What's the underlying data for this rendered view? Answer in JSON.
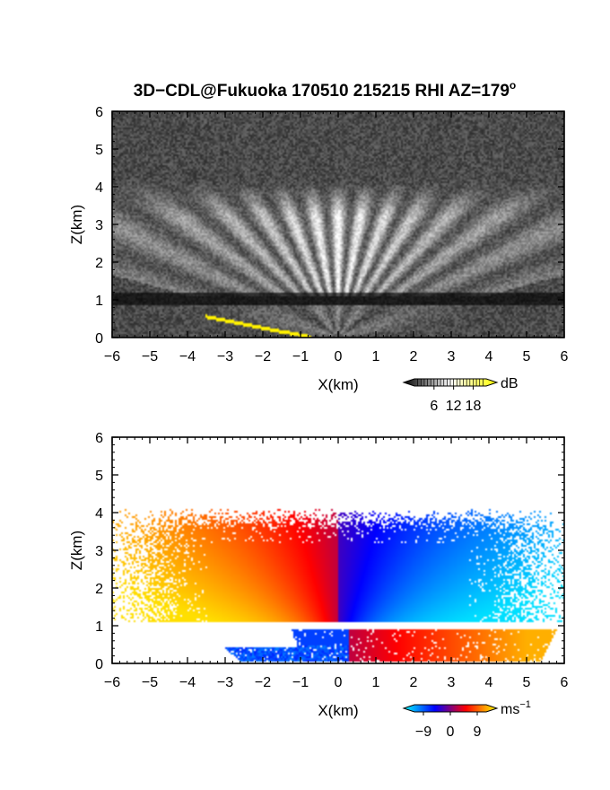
{
  "title_main": "3D−CDL@Fukuoka 170510 215215 RHI AZ=179",
  "title_sup": "o",
  "chart_data": [
    {
      "type": "heatmap",
      "quantity": "dB",
      "xlabel": "X(km)",
      "ylabel": "Z(km)",
      "xlim": [
        -6,
        6
      ],
      "ylim": [
        0,
        6
      ],
      "xticks": [
        -6,
        -5,
        -4,
        -3,
        -2,
        -1,
        0,
        1,
        2,
        3,
        4,
        5,
        6
      ],
      "yticks": [
        0,
        1,
        2,
        3,
        4,
        5,
        6
      ],
      "x_tick_labels": [
        "−6",
        "−5",
        "−4",
        "−3",
        "−2",
        "−1",
        "0",
        "1",
        "2",
        "3",
        "4",
        "5",
        "6"
      ],
      "y_tick_labels": [
        "0",
        "1",
        "2",
        "3",
        "4",
        "5",
        "6"
      ],
      "colorbar": {
        "unit": "dB",
        "ticks": [
          "6",
          "12",
          "18"
        ],
        "range": [
          0,
          22
        ],
        "colors": [
          "#000000",
          "#ffffff",
          "#ffff00"
        ]
      },
      "features": {
        "bright_fan_layer_km": [
          1.1,
          4.1
        ],
        "dark_band_km": [
          0.85,
          1.2
        ],
        "ground_echo_start": [
          -3.5,
          0.55
        ],
        "ground_echo_end": [
          -0.7,
          0.0
        ]
      }
    },
    {
      "type": "heatmap",
      "quantity": "ms",
      "xlabel": "X(km)",
      "ylabel": "Z(km)",
      "xlim": [
        -6,
        6
      ],
      "ylim": [
        0,
        6
      ],
      "xticks": [
        -6,
        -5,
        -4,
        -3,
        -2,
        -1,
        0,
        1,
        2,
        3,
        4,
        5,
        6
      ],
      "yticks": [
        0,
        1,
        2,
        3,
        4,
        5,
        6
      ],
      "x_tick_labels": [
        "−6",
        "−5",
        "−4",
        "−3",
        "−2",
        "−1",
        "0",
        "1",
        "2",
        "3",
        "4",
        "5",
        "6"
      ],
      "y_tick_labels": [
        "0",
        "1",
        "2",
        "3",
        "4",
        "5",
        "6"
      ],
      "colorbar": {
        "unit": "ms",
        "unit_sup": "−1",
        "ticks": [
          "−9",
          "0",
          "9"
        ],
        "range": [
          -12,
          12
        ],
        "colors": [
          "#00ffff",
          "#0000ff",
          "#ff0000",
          "#ffff00"
        ]
      },
      "features": {
        "upper_layer_km": [
          1.1,
          4.1
        ],
        "lower_layer_km": [
          0.05,
          0.9
        ],
        "upper_left_velocity": "positive",
        "upper_right_velocity": "negative"
      }
    }
  ]
}
